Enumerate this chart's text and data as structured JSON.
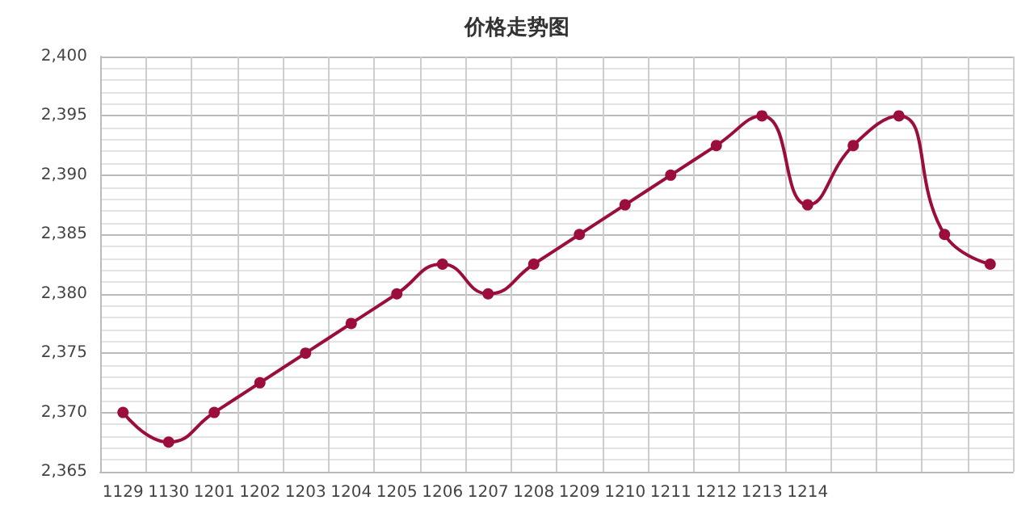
{
  "chart_data": {
    "type": "line",
    "title": "价格走势图",
    "categories": [
      "1129",
      "1130",
      "1201",
      "1202",
      "1203",
      "1204",
      "1205",
      "1206",
      "1207",
      "1208",
      "1209",
      "1210",
      "1211",
      "1212",
      "1213",
      "1214",
      null,
      null,
      null,
      null
    ],
    "series": [
      {
        "color": "#9b0d3c",
        "values": [
          2370,
          2367.5,
          2370,
          2372.5,
          2375,
          2377.5,
          2380,
          2382.5,
          2380,
          2382.5,
          2385,
          2387.5,
          2390,
          2392.5,
          2395,
          2387.5,
          2392.5,
          2395,
          2385,
          2382.5
        ]
      }
    ],
    "ylim": [
      2365,
      2400
    ],
    "yticks": [
      {
        "value": 2365,
        "label": "2,365"
      },
      {
        "value": 2370,
        "label": "2,370"
      },
      {
        "value": 2375,
        "label": "2,375"
      },
      {
        "value": 2380,
        "label": "2,380"
      },
      {
        "value": 2385,
        "label": "2,385"
      },
      {
        "value": 2390,
        "label": "2,390"
      },
      {
        "value": 2395,
        "label": "2,395"
      },
      {
        "value": 2400,
        "label": "2,400"
      }
    ],
    "grid": true,
    "marker": "circle",
    "line_style": "solid"
  }
}
